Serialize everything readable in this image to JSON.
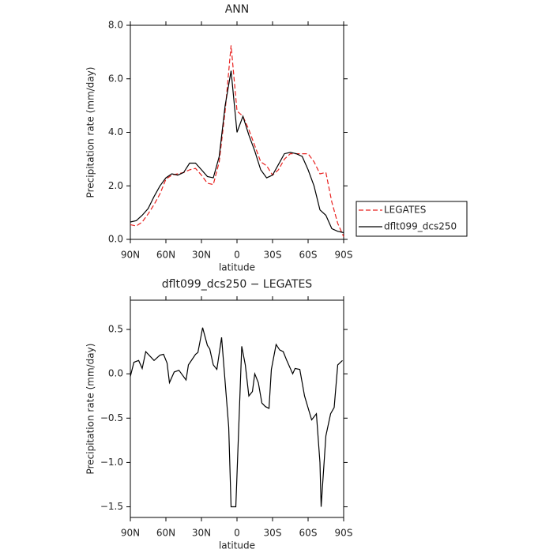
{
  "chart_data": [
    {
      "type": "line",
      "title": "ANN",
      "xlabel": "latitude",
      "ylabel": "Precipitation rate (mm/day)",
      "x": [
        90,
        85,
        80,
        75,
        70,
        65,
        60,
        55,
        50,
        45,
        40,
        35,
        30,
        25,
        20,
        15,
        10,
        5,
        0,
        -5,
        -10,
        -15,
        -20,
        -25,
        -30,
        -35,
        -40,
        -45,
        -50,
        -55,
        -60,
        -65,
        -70,
        -75,
        -80,
        -85,
        -90
      ],
      "series": [
        {
          "name": "LEGATES",
          "color": "#e8201e",
          "linestyle": "dashed",
          "values": [
            0.55,
            0.5,
            0.65,
            0.95,
            1.3,
            1.7,
            2.25,
            2.4,
            2.45,
            2.5,
            2.6,
            2.65,
            2.4,
            2.1,
            2.05,
            2.9,
            4.8,
            7.25,
            4.8,
            4.6,
            4.1,
            3.5,
            2.9,
            2.75,
            2.4,
            2.6,
            3.0,
            3.2,
            3.2,
            3.2,
            3.2,
            2.9,
            2.45,
            2.5,
            1.4,
            0.6,
            0.1
          ]
        },
        {
          "name": "dflt099_dcs250",
          "color": "#000000",
          "linestyle": "solid",
          "values": [
            0.65,
            0.7,
            0.9,
            1.15,
            1.6,
            2.0,
            2.3,
            2.45,
            2.4,
            2.5,
            2.85,
            2.85,
            2.6,
            2.35,
            2.3,
            3.1,
            5.0,
            6.3,
            4.0,
            4.6,
            3.9,
            3.3,
            2.6,
            2.3,
            2.4,
            2.8,
            3.2,
            3.25,
            3.2,
            3.1,
            2.6,
            2.0,
            1.1,
            0.9,
            0.4,
            0.3,
            0.25
          ]
        }
      ],
      "xlim": [
        90,
        -90
      ],
      "xticks": [
        {
          "value": 90,
          "label": "90N"
        },
        {
          "value": 60,
          "label": "60N"
        },
        {
          "value": 30,
          "label": "30N"
        },
        0,
        {
          "value": -30,
          "label": "30S"
        },
        {
          "value": -60,
          "label": "60S"
        },
        {
          "value": -90,
          "label": "90S"
        }
      ],
      "ylim": [
        0,
        8
      ],
      "yticks": [
        {
          "value": 0,
          "label": "0.0"
        },
        {
          "value": 2,
          "label": "2.0"
        },
        {
          "value": 4,
          "label": "4.0"
        },
        {
          "value": 6,
          "label": "6.0"
        },
        {
          "value": 8,
          "label": "8.0"
        }
      ],
      "legend": "right"
    },
    {
      "type": "line",
      "title": "dflt099_dcs250 − LEGATES",
      "xlabel": "latitude",
      "ylabel": "Precipitation rate (mm/day)",
      "x": [
        90,
        87,
        83,
        80,
        77,
        70,
        65,
        62,
        59,
        57,
        53,
        49,
        43,
        41,
        35,
        33,
        29,
        25,
        23,
        20,
        17,
        13,
        7,
        5,
        1,
        -4,
        -7,
        -10,
        -13,
        -15,
        -18,
        -21,
        -24,
        -27,
        -29,
        -33,
        -36,
        -39,
        -42,
        -47,
        -49,
        -53,
        -57,
        -63,
        -67,
        -70,
        -71,
        -75,
        -79,
        -82,
        -85,
        -89
      ],
      "series": [
        {
          "name": "dflt099_dcs250 − LEGATES",
          "color": "#000000",
          "linestyle": "solid",
          "values": [
            -0.03,
            0.13,
            0.15,
            0.06,
            0.25,
            0.15,
            0.21,
            0.22,
            0.12,
            -0.1,
            0.02,
            0.04,
            -0.07,
            0.1,
            0.22,
            0.24,
            0.52,
            0.32,
            0.28,
            0.1,
            0.05,
            0.41,
            -0.6,
            -1.5,
            -1.5,
            0.31,
            0.1,
            -0.25,
            -0.2,
            0,
            -0.1,
            -0.33,
            -0.37,
            -0.39,
            0.05,
            0.33,
            0.27,
            0.25,
            0.15,
            0.0,
            0.06,
            0.05,
            -0.25,
            -0.52,
            -0.45,
            -1.0,
            -1.5,
            -0.7,
            -0.45,
            -0.38,
            0.1,
            0.15
          ]
        }
      ],
      "xlim": [
        90,
        -90
      ],
      "xticks": [
        {
          "value": 90,
          "label": "90N"
        },
        {
          "value": 60,
          "label": "60N"
        },
        {
          "value": 30,
          "label": "30N"
        },
        0,
        {
          "value": -30,
          "label": "30S"
        },
        {
          "value": -60,
          "label": "60S"
        },
        {
          "value": -90,
          "label": "90S"
        }
      ],
      "ylim": [
        -1.62,
        0.83
      ],
      "yticks": [
        {
          "value": 0.5,
          "label": "0.5"
        },
        {
          "value": 0,
          "label": "0.0"
        },
        {
          "value": -0.5,
          "label": "−0.5"
        },
        {
          "value": -1,
          "label": "−1.0"
        },
        {
          "value": -1.5,
          "label": "−1.5"
        }
      ]
    }
  ]
}
